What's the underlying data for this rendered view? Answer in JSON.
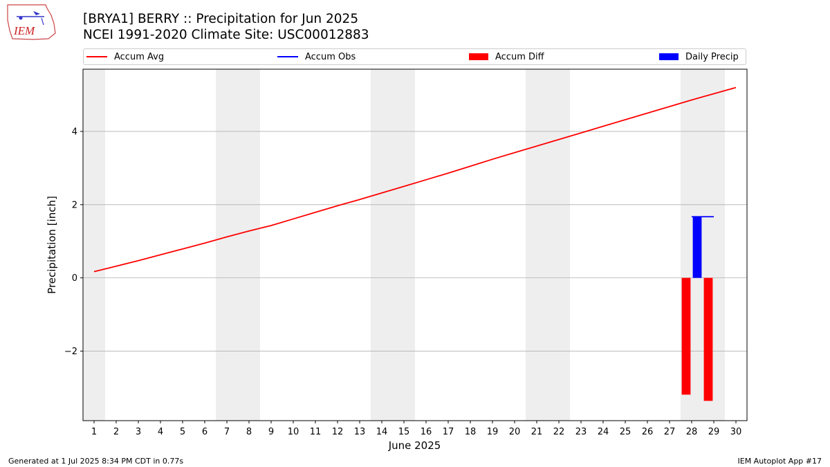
{
  "header": {
    "title_line1": "[BRYA1] BERRY :: Precipitation for Jun 2025",
    "title_line2": "NCEI 1991-2020 Climate Site: USC00012883",
    "logo_text": "IEM"
  },
  "footer": {
    "generated": "Generated at 1 Jul 2025 8:34 PM CDT in 0.77s",
    "app": "IEM Autoplot App #17"
  },
  "colors": {
    "avg": "#ff0000",
    "obs": "#0000ff",
    "diff": "#ff0000",
    "daily": "#0000ff",
    "weekend_band": "#eeeeee",
    "grid": "#b0b0b0"
  },
  "chart_data": {
    "type": "line",
    "xlabel": "June 2025",
    "ylabel": "Precipitation [inch]",
    "xlim": [
      0.5,
      30.5
    ],
    "ylim": [
      -3.9,
      5.7
    ],
    "yticks": [
      -2,
      0,
      2,
      4
    ],
    "ytick_labels": [
      "−2",
      "0",
      "2",
      "4"
    ],
    "x": [
      1,
      2,
      3,
      4,
      5,
      6,
      7,
      8,
      9,
      10,
      11,
      12,
      13,
      14,
      15,
      16,
      17,
      18,
      19,
      20,
      21,
      22,
      23,
      24,
      25,
      26,
      27,
      28,
      29,
      30
    ],
    "x_tick_labels": [
      "1",
      "2",
      "3",
      "4",
      "5",
      "6",
      "7",
      "8",
      "9",
      "10",
      "11",
      "12",
      "13",
      "14",
      "15",
      "16",
      "17",
      "18",
      "19",
      "20",
      "21",
      "22",
      "23",
      "24",
      "25",
      "26",
      "27",
      "28",
      "29",
      "30"
    ],
    "weekend_bands": [
      [
        0.5,
        1.5
      ],
      [
        6.5,
        8.5
      ],
      [
        13.5,
        15.5
      ],
      [
        20.5,
        22.5
      ],
      [
        27.5,
        29.5
      ]
    ],
    "grid": "horizontal",
    "legend_placement": "top, above plot",
    "series": [
      {
        "name": "Accum Avg",
        "kind": "line",
        "x": [
          1,
          2,
          3,
          4,
          5,
          6,
          7,
          8,
          9,
          10,
          11,
          12,
          13,
          14,
          15,
          16,
          17,
          18,
          19,
          20,
          21,
          22,
          23,
          24,
          25,
          26,
          27,
          28,
          29,
          30
        ],
        "values": [
          0.17,
          0.32,
          0.47,
          0.63,
          0.79,
          0.95,
          1.12,
          1.28,
          1.43,
          1.61,
          1.79,
          1.97,
          2.14,
          2.32,
          2.5,
          2.68,
          2.86,
          3.05,
          3.24,
          3.42,
          3.6,
          3.78,
          3.96,
          4.14,
          4.32,
          4.5,
          4.68,
          4.86,
          5.03,
          5.2
        ]
      },
      {
        "name": "Accum Obs",
        "kind": "line",
        "x": [
          28,
          29
        ],
        "values": [
          1.67,
          1.67
        ]
      },
      {
        "name": "Accum Diff",
        "kind": "bar",
        "x": [
          28,
          29
        ],
        "values": [
          -3.19,
          -3.36
        ]
      },
      {
        "name": "Daily Precip",
        "kind": "bar",
        "x": [
          28
        ],
        "values": [
          1.67
        ]
      }
    ]
  }
}
